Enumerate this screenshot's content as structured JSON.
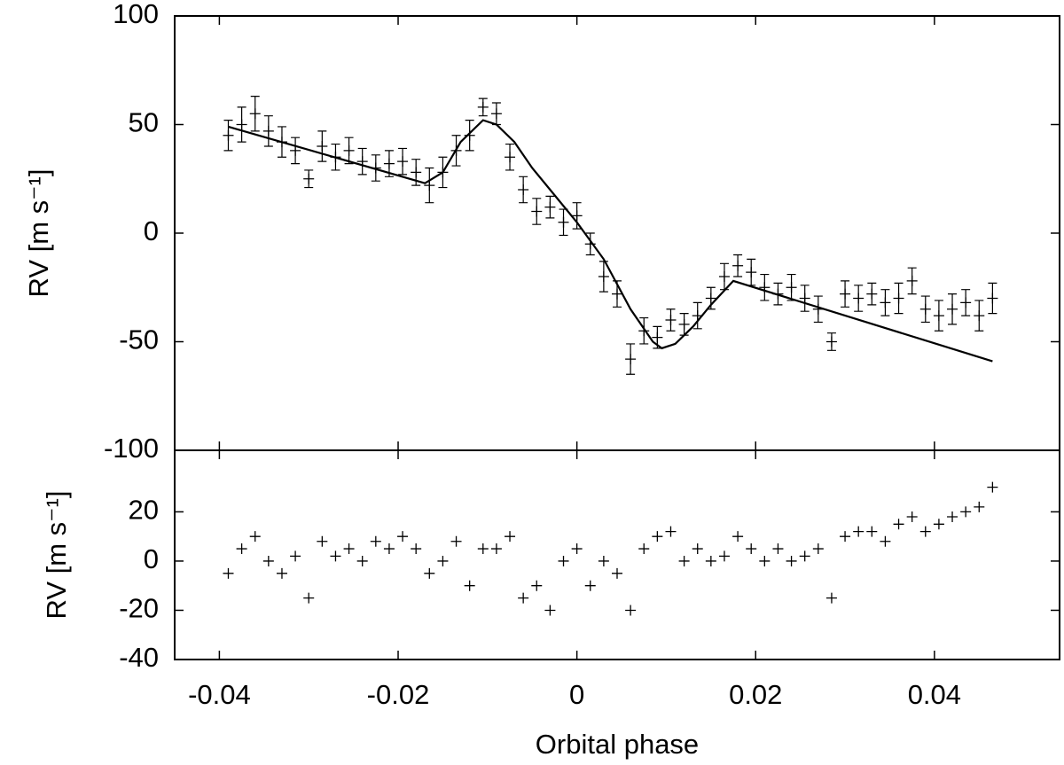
{
  "chart_data": [
    {
      "type": "scatter",
      "ylabel": "RV [m s⁻¹]",
      "xlim": [
        -0.045,
        0.054
      ],
      "ylim": [
        -100,
        100
      ],
      "yticks": [
        -100,
        -50,
        0,
        50,
        100
      ],
      "x": [
        -0.039,
        -0.0375,
        -0.036,
        -0.0345,
        -0.033,
        -0.0315,
        -0.03,
        -0.0285,
        -0.027,
        -0.0255,
        -0.024,
        -0.0225,
        -0.021,
        -0.0195,
        -0.018,
        -0.0165,
        -0.015,
        -0.0135,
        -0.012,
        -0.0105,
        -0.009,
        -0.0075,
        -0.006,
        -0.0045,
        -0.003,
        -0.0015,
        0,
        0.0015,
        0.003,
        0.0045,
        0.006,
        0.0075,
        0.009,
        0.0105,
        0.012,
        0.0135,
        0.015,
        0.0165,
        0.018,
        0.0195,
        0.021,
        0.0225,
        0.024,
        0.0255,
        0.027,
        0.0285,
        0.03,
        0.0315,
        0.033,
        0.0345,
        0.036,
        0.0375,
        0.039,
        0.0405,
        0.042,
        0.0435,
        0.045,
        0.0465
      ],
      "values": [
        45,
        50,
        55,
        47,
        42,
        38,
        25,
        40,
        35,
        38,
        33,
        30,
        32,
        33,
        28,
        22,
        28,
        38,
        45,
        58,
        55,
        35,
        20,
        10,
        12,
        5,
        8,
        -5,
        -20,
        -28,
        -58,
        -45,
        -48,
        -40,
        -42,
        -38,
        -30,
        -20,
        -15,
        -18,
        -25,
        -28,
        -25,
        -30,
        -35,
        -50,
        -28,
        -30,
        -28,
        -32,
        -30,
        -22,
        -35,
        -38,
        -35,
        -32,
        -38,
        -30
      ],
      "errors": [
        7,
        8,
        8,
        7,
        7,
        6,
        4,
        7,
        6,
        6,
        6,
        6,
        6,
        6,
        6,
        8,
        7,
        7,
        7,
        4,
        5,
        6,
        6,
        6,
        5,
        6,
        6,
        5,
        7,
        6,
        7,
        6,
        5,
        5,
        5,
        6,
        5,
        6,
        5,
        6,
        6,
        5,
        6,
        6,
        6,
        4,
        6,
        6,
        5,
        6,
        7,
        6,
        6,
        7,
        7,
        6,
        7,
        7
      ],
      "model": {
        "x": [
          -0.039,
          -0.017,
          -0.015,
          -0.013,
          -0.0105,
          -0.009,
          -0.007,
          -0.005,
          -0.002,
          0,
          0.003,
          0.006,
          0.0085,
          0.0095,
          0.011,
          0.013,
          0.015,
          0.0175,
          0.0465
        ],
        "values": [
          49,
          23,
          28,
          42,
          52,
          50,
          42,
          30,
          15,
          5,
          -12,
          -35,
          -50,
          -53,
          -51,
          -43,
          -33,
          -22,
          -59
        ]
      },
      "color": "#000000"
    },
    {
      "type": "scatter",
      "ylabel": "RV [m s⁻¹]",
      "xlabel": "Orbital phase",
      "xlim": [
        -0.045,
        0.054
      ],
      "ylim": [
        -40,
        45
      ],
      "xticks": [
        -0.04,
        -0.02,
        0,
        0.02,
        0.04
      ],
      "yticks": [
        -40,
        -20,
        0,
        20
      ],
      "x": [
        -0.039,
        -0.0375,
        -0.036,
        -0.0345,
        -0.033,
        -0.0315,
        -0.03,
        -0.0285,
        -0.027,
        -0.0255,
        -0.024,
        -0.0225,
        -0.021,
        -0.0195,
        -0.018,
        -0.0165,
        -0.015,
        -0.0135,
        -0.012,
        -0.0105,
        -0.009,
        -0.0075,
        -0.006,
        -0.0045,
        -0.003,
        -0.0015,
        0,
        0.0015,
        0.003,
        0.0045,
        0.006,
        0.0075,
        0.009,
        0.0105,
        0.012,
        0.0135,
        0.015,
        0.0165,
        0.018,
        0.0195,
        0.021,
        0.0225,
        0.024,
        0.0255,
        0.027,
        0.0285,
        0.03,
        0.0315,
        0.033,
        0.0345,
        0.036,
        0.0375,
        0.039,
        0.0405,
        0.042,
        0.0435,
        0.045,
        0.0465
      ],
      "values": [
        -5,
        5,
        10,
        0,
        -5,
        2,
        -15,
        8,
        2,
        5,
        0,
        8,
        5,
        10,
        5,
        -5,
        0,
        8,
        -10,
        5,
        5,
        10,
        -15,
        -10,
        -20,
        0,
        5,
        -10,
        0,
        -5,
        -20,
        5,
        10,
        12,
        0,
        5,
        0,
        2,
        10,
        5,
        0,
        5,
        0,
        2,
        5,
        -15,
        10,
        12,
        12,
        8,
        15,
        18,
        12,
        15,
        18,
        20,
        22,
        30
      ],
      "color": "#000000"
    }
  ]
}
